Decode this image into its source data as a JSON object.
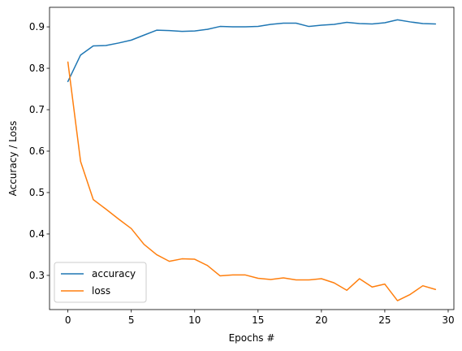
{
  "chart_data": {
    "type": "line",
    "title": "",
    "xlabel": "Epochs #",
    "ylabel": "Accuracy / Loss",
    "xlim": [
      -1.45,
      30.45
    ],
    "ylim": [
      0.2175,
      0.9472
    ],
    "xticks": [
      0,
      5,
      10,
      15,
      20,
      25,
      30
    ],
    "yticks": [
      0.3,
      0.4,
      0.5,
      0.6,
      0.7,
      0.8,
      0.9
    ],
    "xtick_labels": [
      "0",
      "5",
      "10",
      "15",
      "20",
      "25",
      "30"
    ],
    "ytick_labels": [
      "0.3",
      "0.4",
      "0.5",
      "0.6",
      "0.7",
      "0.8",
      "0.9"
    ],
    "grid": false,
    "legend_position": "lower-left",
    "x": [
      0,
      1,
      2,
      3,
      4,
      5,
      6,
      7,
      8,
      9,
      10,
      11,
      12,
      13,
      14,
      15,
      16,
      17,
      18,
      19,
      20,
      21,
      22,
      23,
      24,
      25,
      26,
      27,
      28,
      29
    ],
    "series": [
      {
        "name": "accuracy",
        "color": "#1f77b4",
        "values": [
          0.768,
          0.832,
          0.854,
          0.855,
          0.861,
          0.868,
          0.88,
          0.892,
          0.891,
          0.889,
          0.89,
          0.894,
          0.901,
          0.9,
          0.9,
          0.901,
          0.906,
          0.909,
          0.909,
          0.901,
          0.904,
          0.906,
          0.911,
          0.908,
          0.907,
          0.91,
          0.917,
          0.912,
          0.908,
          0.907
        ]
      },
      {
        "name": "loss",
        "color": "#ff7f0e",
        "values": [
          0.815,
          0.575,
          0.483,
          0.46,
          0.436,
          0.413,
          0.375,
          0.35,
          0.334,
          0.34,
          0.339,
          0.324,
          0.299,
          0.301,
          0.301,
          0.293,
          0.29,
          0.294,
          0.289,
          0.289,
          0.292,
          0.282,
          0.264,
          0.292,
          0.272,
          0.279,
          0.239,
          0.254,
          0.275,
          0.266
        ]
      }
    ]
  }
}
